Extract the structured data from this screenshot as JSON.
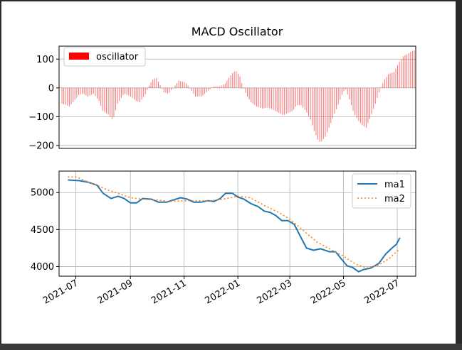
{
  "window": {
    "background": "#2b2b2b"
  },
  "chart_data": [
    {
      "type": "bar",
      "title": "MACD Oscillator",
      "xlabel": "",
      "ylabel": "",
      "ylim": [
        -210,
        145
      ],
      "yticks": [
        100,
        0,
        -100,
        -200
      ],
      "ytick_labels": [
        "100",
        "0",
        "−100",
        "−200"
      ],
      "grid": true,
      "legend": {
        "placement": "top-left",
        "entries": [
          {
            "label": "oscillator",
            "color": "#ff0000"
          }
        ]
      },
      "bar_color": "#ff0000",
      "x_range": [
        "2021-06-22",
        "2022-07-07"
      ],
      "bar_interval_days": 2,
      "keypoints": [
        [
          "2021-06-22",
          -55
        ],
        [
          "2021-06-27",
          -60
        ],
        [
          "2021-06-30",
          -65
        ],
        [
          "2021-07-05",
          -45
        ],
        [
          "2021-07-10",
          -25
        ],
        [
          "2021-07-15",
          -20
        ],
        [
          "2021-07-20",
          -30
        ],
        [
          "2021-07-26",
          -20
        ],
        [
          "2021-08-01",
          -45
        ],
        [
          "2021-08-05",
          -80
        ],
        [
          "2021-08-11",
          -92
        ],
        [
          "2021-08-16",
          -112
        ],
        [
          "2021-08-21",
          -55
        ],
        [
          "2021-08-28",
          -20
        ],
        [
          "2021-09-03",
          -28
        ],
        [
          "2021-09-10",
          -45
        ],
        [
          "2021-09-14",
          -50
        ],
        [
          "2021-09-20",
          -22
        ],
        [
          "2021-09-25",
          15
        ],
        [
          "2021-09-29",
          33
        ],
        [
          "2021-10-02",
          34
        ],
        [
          "2021-10-06",
          10
        ],
        [
          "2021-10-10",
          -15
        ],
        [
          "2021-10-15",
          -20
        ],
        [
          "2021-10-20",
          0
        ],
        [
          "2021-10-26",
          25
        ],
        [
          "2021-11-02",
          20
        ],
        [
          "2021-11-08",
          -5
        ],
        [
          "2021-11-13",
          -30
        ],
        [
          "2021-11-20",
          -30
        ],
        [
          "2021-11-26",
          -12
        ],
        [
          "2021-12-02",
          5
        ],
        [
          "2021-12-09",
          5
        ],
        [
          "2021-12-15",
          15
        ],
        [
          "2021-12-20",
          40
        ],
        [
          "2021-12-24",
          56
        ],
        [
          "2021-12-27",
          58
        ],
        [
          "2021-12-31",
          40
        ],
        [
          "2022-01-03",
          5
        ],
        [
          "2022-01-07",
          -25
        ],
        [
          "2022-01-12",
          -50
        ],
        [
          "2022-01-18",
          -65
        ],
        [
          "2022-01-24",
          -72
        ],
        [
          "2022-01-30",
          -68
        ],
        [
          "2022-02-04",
          -75
        ],
        [
          "2022-02-10",
          -85
        ],
        [
          "2022-02-16",
          -95
        ],
        [
          "2022-02-22",
          -85
        ],
        [
          "2022-02-26",
          -80
        ],
        [
          "2022-03-02",
          -60
        ],
        [
          "2022-03-07",
          -60
        ],
        [
          "2022-03-12",
          -80
        ],
        [
          "2022-03-17",
          -110
        ],
        [
          "2022-03-21",
          -150
        ],
        [
          "2022-03-25",
          -180
        ],
        [
          "2022-03-28",
          -190
        ],
        [
          "2022-04-02",
          -170
        ],
        [
          "2022-04-07",
          -130
        ],
        [
          "2022-04-12",
          -90
        ],
        [
          "2022-04-17",
          -50
        ],
        [
          "2022-04-21",
          -15
        ],
        [
          "2022-04-24",
          -5
        ],
        [
          "2022-04-28",
          -40
        ],
        [
          "2022-05-03",
          -90
        ],
        [
          "2022-05-08",
          -115
        ],
        [
          "2022-05-12",
          -130
        ],
        [
          "2022-05-16",
          -138
        ],
        [
          "2022-05-21",
          -100
        ],
        [
          "2022-05-26",
          -55
        ],
        [
          "2022-05-31",
          -5
        ],
        [
          "2022-06-05",
          30
        ],
        [
          "2022-06-10",
          50
        ],
        [
          "2022-06-15",
          55
        ],
        [
          "2022-06-20",
          85
        ],
        [
          "2022-06-25",
          110
        ],
        [
          "2022-06-30",
          118
        ],
        [
          "2022-07-04",
          128
        ],
        [
          "2022-07-07",
          130
        ]
      ]
    },
    {
      "type": "line",
      "title": "",
      "xlabel": "",
      "ylabel": "",
      "ylim": [
        3870,
        5290
      ],
      "yticks": [
        5000,
        4500,
        4000
      ],
      "ytick_labels": [
        "5000",
        "4500",
        "4000"
      ],
      "x_range": [
        "2021-06-12",
        "2022-07-22"
      ],
      "xticks": [
        "2021-07-01",
        "2021-09-01",
        "2021-11-01",
        "2022-01-01",
        "2022-03-01",
        "2022-05-01",
        "2022-07-01"
      ],
      "xtick_labels": [
        "2021-07",
        "2021-09",
        "2021-11",
        "2022-01",
        "2022-03",
        "2022-05",
        "2022-07"
      ],
      "grid": true,
      "legend": {
        "placement": "top-right"
      },
      "series": [
        {
          "name": "ma1",
          "color": "#1f77b4",
          "style": "solid",
          "points": [
            [
              "2021-06-22",
              5170
            ],
            [
              "2021-07-05",
              5160
            ],
            [
              "2021-07-15",
              5140
            ],
            [
              "2021-07-25",
              5100
            ],
            [
              "2021-08-01",
              4990
            ],
            [
              "2021-08-10",
              4920
            ],
            [
              "2021-08-18",
              4950
            ],
            [
              "2021-08-25",
              4920
            ],
            [
              "2021-09-01",
              4860
            ],
            [
              "2021-09-08",
              4860
            ],
            [
              "2021-09-15",
              4920
            ],
            [
              "2021-09-25",
              4910
            ],
            [
              "2021-10-03",
              4870
            ],
            [
              "2021-10-12",
              4870
            ],
            [
              "2021-10-20",
              4900
            ],
            [
              "2021-10-28",
              4930
            ],
            [
              "2021-11-05",
              4910
            ],
            [
              "2021-11-12",
              4870
            ],
            [
              "2021-11-20",
              4870
            ],
            [
              "2021-11-28",
              4890
            ],
            [
              "2021-12-05",
              4880
            ],
            [
              "2021-12-12",
              4920
            ],
            [
              "2021-12-18",
              4990
            ],
            [
              "2021-12-26",
              4990
            ],
            [
              "2022-01-01",
              4940
            ],
            [
              "2022-01-08",
              4910
            ],
            [
              "2022-01-16",
              4850
            ],
            [
              "2022-01-24",
              4810
            ],
            [
              "2022-01-31",
              4750
            ],
            [
              "2022-02-07",
              4730
            ],
            [
              "2022-02-13",
              4690
            ],
            [
              "2022-02-20",
              4620
            ],
            [
              "2022-02-27",
              4620
            ],
            [
              "2022-03-06",
              4570
            ],
            [
              "2022-03-12",
              4430
            ],
            [
              "2022-03-20",
              4250
            ],
            [
              "2022-03-28",
              4220
            ],
            [
              "2022-04-05",
              4240
            ],
            [
              "2022-04-15",
              4200
            ],
            [
              "2022-04-22",
              4200
            ],
            [
              "2022-04-28",
              4110
            ],
            [
              "2022-05-05",
              4010
            ],
            [
              "2022-05-11",
              3990
            ],
            [
              "2022-05-18",
              3930
            ],
            [
              "2022-05-24",
              3960
            ],
            [
              "2022-06-01",
              3980
            ],
            [
              "2022-06-10",
              4040
            ],
            [
              "2022-06-18",
              4170
            ],
            [
              "2022-06-25",
              4250
            ],
            [
              "2022-06-30",
              4300
            ],
            [
              "2022-07-04",
              4390
            ]
          ]
        },
        {
          "name": "ma2",
          "color": "#ff7f0e",
          "style": "dotted",
          "points": [
            [
              "2021-06-22",
              5210
            ],
            [
              "2021-07-02",
              5210
            ],
            [
              "2021-07-15",
              5140
            ],
            [
              "2021-07-25",
              5100
            ],
            [
              "2021-08-05",
              5040
            ],
            [
              "2021-08-20",
              4980
            ],
            [
              "2021-09-01",
              4930
            ],
            [
              "2021-09-15",
              4910
            ],
            [
              "2021-10-01",
              4900
            ],
            [
              "2021-10-15",
              4880
            ],
            [
              "2021-11-01",
              4890
            ],
            [
              "2021-11-15",
              4890
            ],
            [
              "2021-12-01",
              4890
            ],
            [
              "2021-12-15",
              4910
            ],
            [
              "2022-01-01",
              4950
            ],
            [
              "2022-01-15",
              4930
            ],
            [
              "2022-02-01",
              4820
            ],
            [
              "2022-02-15",
              4740
            ],
            [
              "2022-03-01",
              4640
            ],
            [
              "2022-03-15",
              4500
            ],
            [
              "2022-04-01",
              4330
            ],
            [
              "2022-04-15",
              4240
            ],
            [
              "2022-05-01",
              4140
            ],
            [
              "2022-05-15",
              4030
            ],
            [
              "2022-05-28",
              3980
            ],
            [
              "2022-06-10",
              4020
            ],
            [
              "2022-06-22",
              4110
            ],
            [
              "2022-07-04",
              4240
            ]
          ]
        }
      ]
    }
  ]
}
